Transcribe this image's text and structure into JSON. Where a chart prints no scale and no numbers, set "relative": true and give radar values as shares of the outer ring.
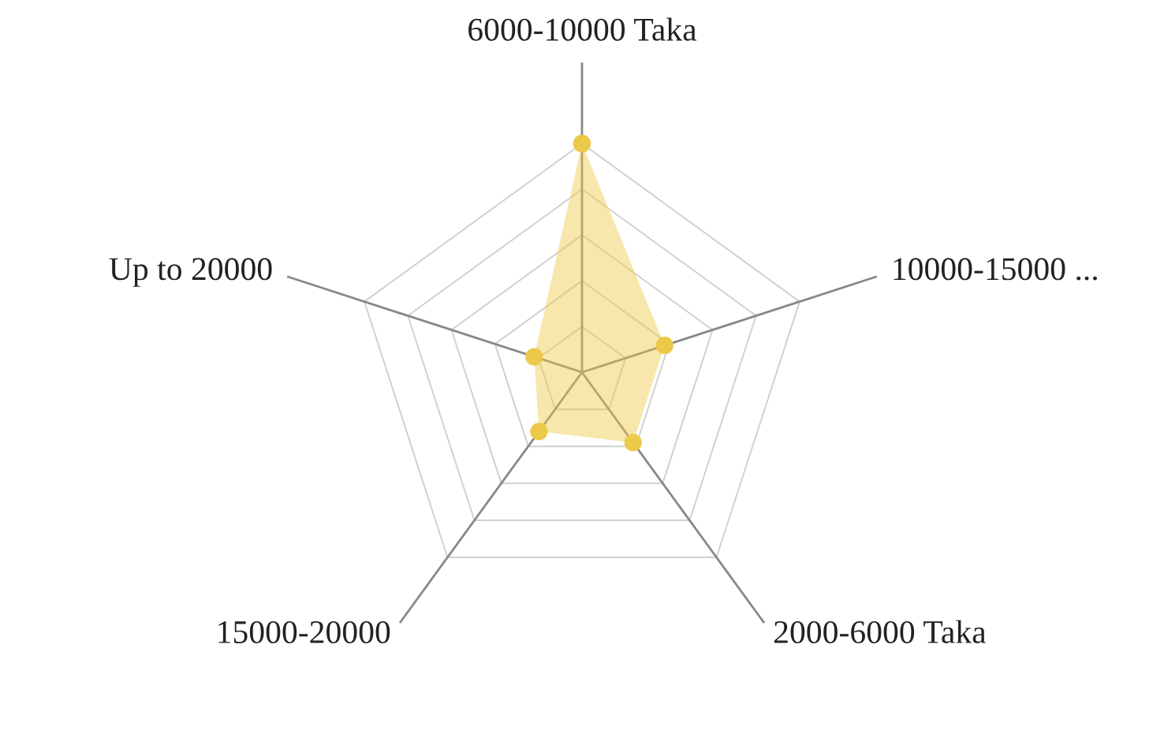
{
  "chart_data": {
    "type": "radar",
    "relative": true,
    "categories": [
      "6000-10000 Taka",
      "10000-15000 ...",
      "2000-6000 Taka",
      "15000-20000",
      "Up to 20000"
    ],
    "series": [
      {
        "color": "#edc949",
        "values": [
          1,
          0.38,
          0.38,
          0.32,
          0.22
        ]
      }
    ],
    "marker": "circle",
    "legend": false
  }
}
